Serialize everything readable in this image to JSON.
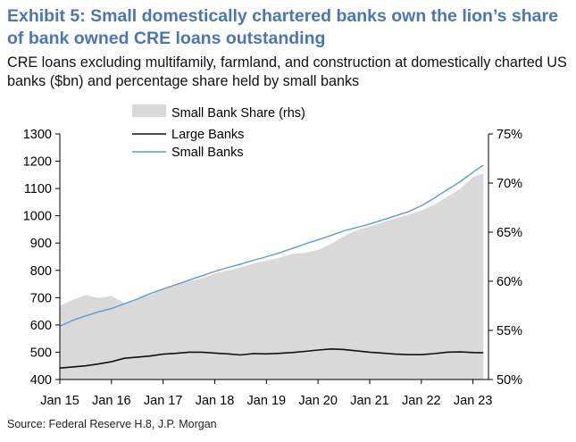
{
  "header": {
    "title": "Exhibit 5: Small domestically chartered banks own the lion’s share of bank owned CRE loans outstanding",
    "subtitle": "CRE loans excluding multifamily, farmland, and construction at domestically charted US banks ($bn) and percentage share held by small banks"
  },
  "footer": {
    "source": "Source: Federal Reserve H.8, J.P. Morgan"
  },
  "chart_data": {
    "type": "line",
    "title": "Exhibit 5: Small domestically chartered banks own the lion’s share of bank owned CRE loans outstanding",
    "x_ticks": [
      "Jan 15",
      "Jan 16",
      "Jan 17",
      "Jan 18",
      "Jan 19",
      "Jan 20",
      "Jan 21",
      "Jan 22",
      "Jan 23"
    ],
    "x_range": [
      2015.0,
      2023.3
    ],
    "left_axis": {
      "ticks": [
        1300,
        1200,
        1100,
        1000,
        900,
        800,
        700,
        600,
        500,
        400
      ],
      "range": [
        400,
        1300
      ],
      "unit": "$bn"
    },
    "right_axis": {
      "ticks": [
        "75%",
        "70%",
        "65%",
        "60%",
        "55%",
        "50%"
      ],
      "range": [
        50,
        75
      ],
      "unit": "%"
    },
    "legend": [
      "Small Bank Share (rhs)",
      "Large Banks",
      "Small Banks"
    ],
    "colors": {
      "area": "#d9d9d9",
      "large": "#111111",
      "small": "#5b9bd5"
    },
    "series": [
      {
        "name": "Small Bank Share (rhs)",
        "type": "area",
        "axis": "right",
        "x": [
          2015.0,
          2015.25,
          2015.5,
          2015.75,
          2016.0,
          2016.25,
          2016.5,
          2016.75,
          2017.0,
          2017.25,
          2017.5,
          2017.75,
          2018.0,
          2018.25,
          2018.5,
          2018.75,
          2019.0,
          2019.25,
          2019.5,
          2019.75,
          2020.0,
          2020.25,
          2020.5,
          2020.75,
          2021.0,
          2021.25,
          2021.5,
          2021.75,
          2022.0,
          2022.25,
          2022.5,
          2022.75,
          2023.0,
          2023.2
        ],
        "values": [
          57.5,
          58.1,
          58.6,
          58.3,
          58.5,
          57.8,
          58.2,
          58.6,
          59.2,
          59.6,
          60.0,
          60.3,
          60.8,
          61.1,
          61.4,
          61.8,
          62.1,
          62.4,
          62.8,
          62.9,
          63.2,
          63.8,
          64.6,
          65.2,
          65.6,
          66.0,
          66.4,
          66.8,
          67.2,
          67.8,
          68.6,
          69.4,
          70.6,
          71.0
        ]
      },
      {
        "name": "Large Banks",
        "type": "line",
        "axis": "left",
        "x": [
          2015.0,
          2015.25,
          2015.5,
          2015.75,
          2016.0,
          2016.25,
          2016.5,
          2016.75,
          2017.0,
          2017.25,
          2017.5,
          2017.75,
          2018.0,
          2018.25,
          2018.5,
          2018.75,
          2019.0,
          2019.25,
          2019.5,
          2019.75,
          2020.0,
          2020.25,
          2020.5,
          2020.75,
          2021.0,
          2021.25,
          2021.5,
          2021.75,
          2022.0,
          2022.25,
          2022.5,
          2022.75,
          2023.0,
          2023.2
        ],
        "values": [
          442,
          446,
          450,
          457,
          465,
          478,
          482,
          486,
          493,
          496,
          500,
          500,
          497,
          494,
          490,
          495,
          494,
          496,
          499,
          503,
          508,
          512,
          510,
          505,
          500,
          497,
          493,
          491,
          491,
          495,
          500,
          501,
          499,
          498
        ]
      },
      {
        "name": "Small Banks",
        "type": "line",
        "axis": "left",
        "x": [
          2015.0,
          2015.25,
          2015.5,
          2015.75,
          2016.0,
          2016.25,
          2016.5,
          2016.75,
          2017.0,
          2017.25,
          2017.5,
          2017.75,
          2018.0,
          2018.25,
          2018.5,
          2018.75,
          2019.0,
          2019.25,
          2019.5,
          2019.75,
          2020.0,
          2020.25,
          2020.5,
          2020.75,
          2021.0,
          2021.25,
          2021.5,
          2021.75,
          2022.0,
          2022.25,
          2022.5,
          2022.75,
          2023.0,
          2023.2
        ],
        "values": [
          595,
          617,
          633,
          648,
          660,
          678,
          695,
          715,
          732,
          748,
          764,
          780,
          796,
          810,
          823,
          837,
          850,
          864,
          880,
          897,
          912,
          928,
          945,
          957,
          970,
          985,
          1000,
          1015,
          1037,
          1065,
          1095,
          1125,
          1160,
          1185
        ]
      }
    ]
  }
}
